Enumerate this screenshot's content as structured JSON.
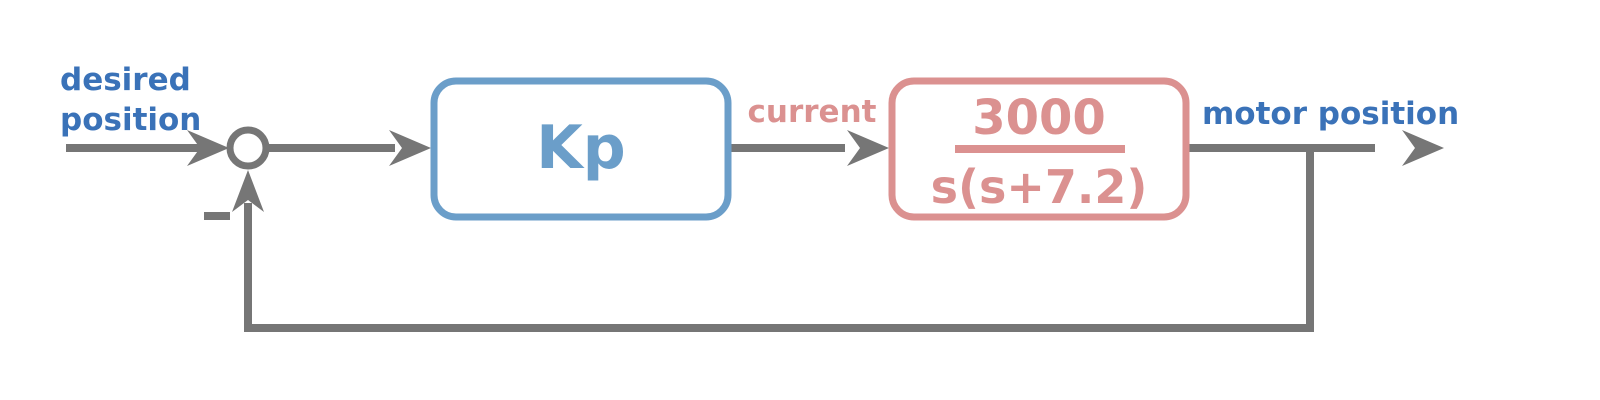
{
  "labels": {
    "input_line1": "desired",
    "input_line2": "position",
    "minus_sign": "-",
    "controller": "Kp",
    "signal_between": "current",
    "plant_numerator": "3000",
    "plant_denominator": "s(s+7.2)",
    "output": "motor position"
  },
  "colors": {
    "line": "#767676",
    "controller_box": "#6b9ec9",
    "plant_box": "#db9190",
    "blue_text": "#3a72b8",
    "red_text": "#db9190"
  }
}
